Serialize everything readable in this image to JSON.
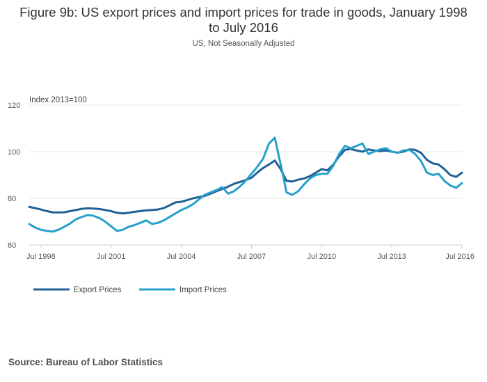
{
  "chart_data": {
    "type": "line",
    "title": "Figure 9b: US export prices and import prices for trade in goods, January 1998 to July 2016",
    "subtitle": "US, Not Seasonally Adjusted",
    "ylabel": "Index 2013=100",
    "xlabel": "",
    "ylim": [
      60,
      120
    ],
    "yticks": [
      "60",
      "80",
      "100",
      "120"
    ],
    "xlim": [
      1998.0,
      2016.5
    ],
    "xticks": [
      {
        "label": "Jul 1998",
        "x": 1998.5
      },
      {
        "label": "Jul 2001",
        "x": 2001.5
      },
      {
        "label": "Jul 2004",
        "x": 2004.5
      },
      {
        "label": "Jul 2007",
        "x": 2007.5
      },
      {
        "label": "Jul 2010",
        "x": 2010.5
      },
      {
        "label": "Jul 2013",
        "x": 2013.5
      },
      {
        "label": "Jul 2016",
        "x": 2016.5
      }
    ],
    "grid": true,
    "legend_position": "bottom-left",
    "series": [
      {
        "name": "Export Prices",
        "color": "#206095",
        "points": [
          [
            1998.0,
            76.3
          ],
          [
            1998.25,
            75.8
          ],
          [
            1998.5,
            75.2
          ],
          [
            1998.75,
            74.5
          ],
          [
            1999.0,
            74.0
          ],
          [
            1999.25,
            73.9
          ],
          [
            1999.5,
            74.0
          ],
          [
            1999.75,
            74.5
          ],
          [
            2000.0,
            75.0
          ],
          [
            2000.25,
            75.5
          ],
          [
            2000.5,
            75.7
          ],
          [
            2000.75,
            75.6
          ],
          [
            2001.0,
            75.4
          ],
          [
            2001.25,
            75.0
          ],
          [
            2001.5,
            74.5
          ],
          [
            2001.75,
            73.8
          ],
          [
            2002.0,
            73.5
          ],
          [
            2002.25,
            73.8
          ],
          [
            2002.5,
            74.2
          ],
          [
            2002.75,
            74.5
          ],
          [
            2003.0,
            74.8
          ],
          [
            2003.25,
            75.0
          ],
          [
            2003.5,
            75.2
          ],
          [
            2003.75,
            75.8
          ],
          [
            2004.0,
            77.0
          ],
          [
            2004.25,
            78.2
          ],
          [
            2004.5,
            78.5
          ],
          [
            2004.75,
            79.2
          ],
          [
            2005.0,
            80.0
          ],
          [
            2005.25,
            80.5
          ],
          [
            2005.5,
            81.0
          ],
          [
            2005.75,
            82.0
          ],
          [
            2006.0,
            83.0
          ],
          [
            2006.25,
            84.0
          ],
          [
            2006.5,
            85.0
          ],
          [
            2006.75,
            86.2
          ],
          [
            2007.0,
            87.0
          ],
          [
            2007.25,
            87.8
          ],
          [
            2007.5,
            88.8
          ],
          [
            2007.75,
            91.0
          ],
          [
            2008.0,
            93.0
          ],
          [
            2008.25,
            94.5
          ],
          [
            2008.5,
            96.2
          ],
          [
            2008.75,
            92.5
          ],
          [
            2009.0,
            87.5
          ],
          [
            2009.25,
            87.2
          ],
          [
            2009.5,
            88.0
          ],
          [
            2009.75,
            88.5
          ],
          [
            2010.0,
            89.5
          ],
          [
            2010.25,
            91.0
          ],
          [
            2010.5,
            92.5
          ],
          [
            2010.75,
            92.0
          ],
          [
            2011.0,
            94.5
          ],
          [
            2011.25,
            98.0
          ],
          [
            2011.5,
            100.8
          ],
          [
            2011.75,
            101.2
          ],
          [
            2012.0,
            100.5
          ],
          [
            2012.25,
            100.0
          ],
          [
            2012.5,
            101.0
          ],
          [
            2012.75,
            100.5
          ],
          [
            2013.0,
            100.2
          ],
          [
            2013.25,
            100.5
          ],
          [
            2013.5,
            100.0
          ],
          [
            2013.75,
            99.6
          ],
          [
            2014.0,
            100.0
          ],
          [
            2014.25,
            101.0
          ],
          [
            2014.5,
            100.8
          ],
          [
            2014.75,
            99.5
          ],
          [
            2015.0,
            96.5
          ],
          [
            2015.25,
            95.0
          ],
          [
            2015.5,
            94.5
          ],
          [
            2015.75,
            92.5
          ],
          [
            2016.0,
            90.0
          ],
          [
            2016.25,
            89.2
          ],
          [
            2016.5,
            91.0
          ]
        ]
      },
      {
        "name": "Import Prices",
        "color": "#27A0CC",
        "points": [
          [
            1998.0,
            69.0
          ],
          [
            1998.25,
            67.5
          ],
          [
            1998.5,
            66.5
          ],
          [
            1998.75,
            66.0
          ],
          [
            1999.0,
            65.7
          ],
          [
            1999.25,
            66.5
          ],
          [
            1999.5,
            67.8
          ],
          [
            1999.75,
            69.2
          ],
          [
            2000.0,
            71.0
          ],
          [
            2000.25,
            72.0
          ],
          [
            2000.5,
            72.8
          ],
          [
            2000.75,
            72.5
          ],
          [
            2001.0,
            71.5
          ],
          [
            2001.25,
            70.0
          ],
          [
            2001.5,
            68.0
          ],
          [
            2001.75,
            66.0
          ],
          [
            2002.0,
            66.5
          ],
          [
            2002.25,
            67.8
          ],
          [
            2002.5,
            68.5
          ],
          [
            2002.75,
            69.5
          ],
          [
            2003.0,
            70.5
          ],
          [
            2003.25,
            69.0
          ],
          [
            2003.5,
            69.5
          ],
          [
            2003.75,
            70.5
          ],
          [
            2004.0,
            72.0
          ],
          [
            2004.25,
            73.5
          ],
          [
            2004.5,
            75.0
          ],
          [
            2004.75,
            76.0
          ],
          [
            2005.0,
            77.5
          ],
          [
            2005.25,
            79.5
          ],
          [
            2005.5,
            81.5
          ],
          [
            2005.75,
            82.5
          ],
          [
            2006.0,
            83.5
          ],
          [
            2006.25,
            84.8
          ],
          [
            2006.5,
            82.0
          ],
          [
            2006.75,
            83.0
          ],
          [
            2007.0,
            85.0
          ],
          [
            2007.25,
            87.5
          ],
          [
            2007.5,
            90.5
          ],
          [
            2007.75,
            93.5
          ],
          [
            2008.0,
            97.0
          ],
          [
            2008.25,
            103.5
          ],
          [
            2008.5,
            106.0
          ],
          [
            2008.65,
            99.0
          ],
          [
            2008.85,
            90.0
          ],
          [
            2009.0,
            82.5
          ],
          [
            2009.25,
            81.5
          ],
          [
            2009.5,
            83.0
          ],
          [
            2009.75,
            86.0
          ],
          [
            2010.0,
            88.5
          ],
          [
            2010.25,
            90.0
          ],
          [
            2010.5,
            90.5
          ],
          [
            2010.75,
            90.5
          ],
          [
            2011.0,
            94.0
          ],
          [
            2011.25,
            99.0
          ],
          [
            2011.5,
            102.5
          ],
          [
            2011.75,
            101.5
          ],
          [
            2012.0,
            102.5
          ],
          [
            2012.25,
            103.5
          ],
          [
            2012.5,
            99.0
          ],
          [
            2012.75,
            100.0
          ],
          [
            2013.0,
            101.0
          ],
          [
            2013.25,
            101.5
          ],
          [
            2013.5,
            100.0
          ],
          [
            2013.75,
            99.5
          ],
          [
            2014.0,
            100.5
          ],
          [
            2014.25,
            100.8
          ],
          [
            2014.5,
            99.0
          ],
          [
            2014.75,
            96.0
          ],
          [
            2015.0,
            91.0
          ],
          [
            2015.25,
            90.0
          ],
          [
            2015.5,
            90.5
          ],
          [
            2015.75,
            87.5
          ],
          [
            2016.0,
            85.5
          ],
          [
            2016.25,
            84.5
          ],
          [
            2016.5,
            86.5
          ]
        ]
      }
    ]
  },
  "source": "Source: Bureau of Labor Statistics"
}
